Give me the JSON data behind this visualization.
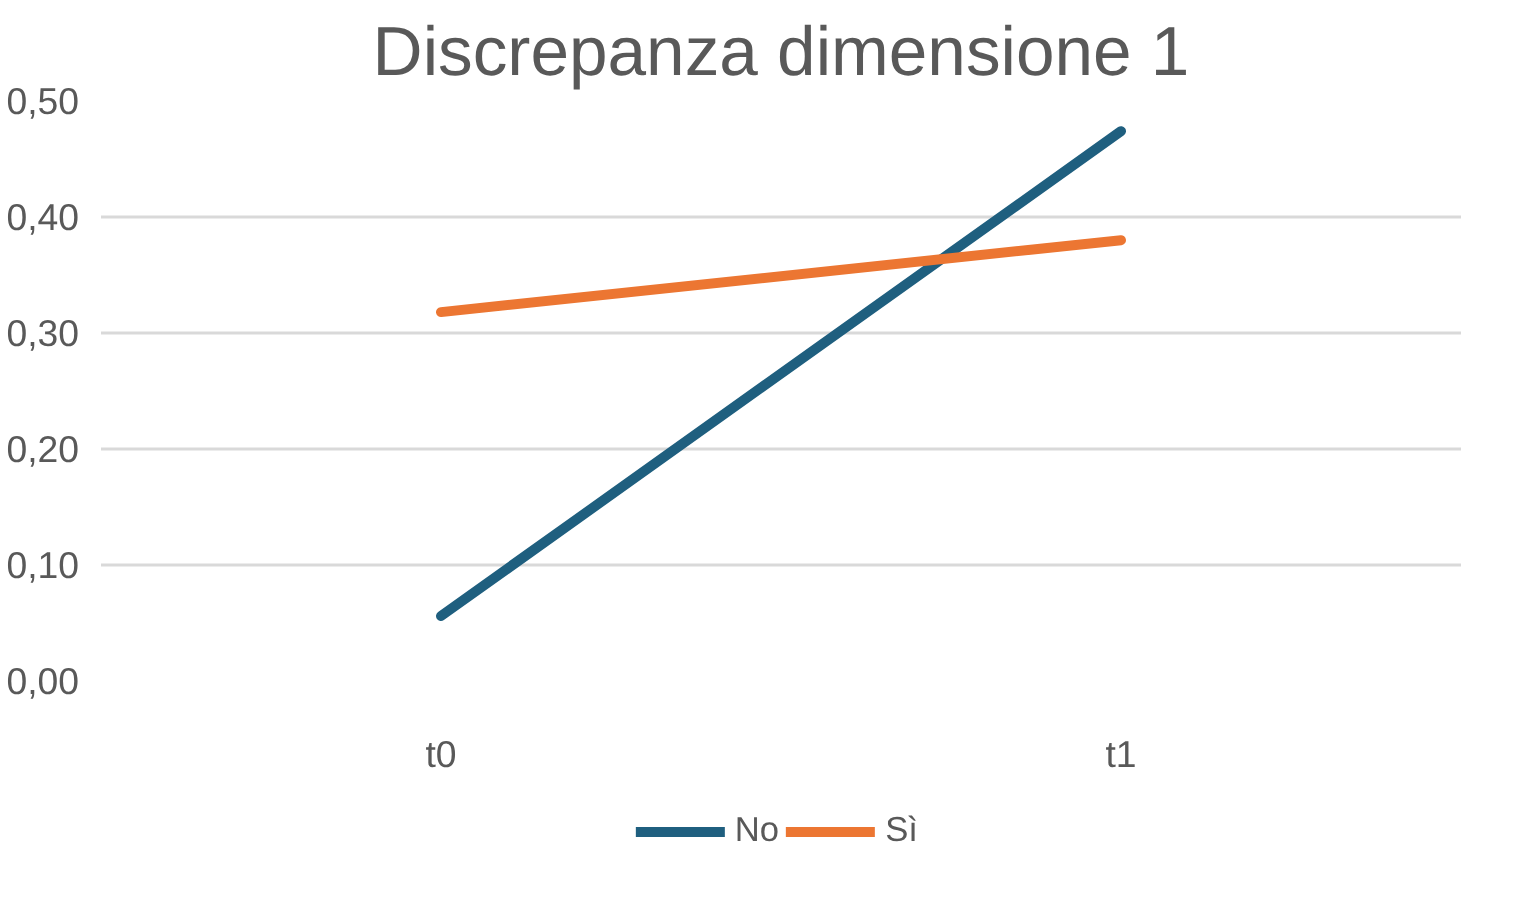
{
  "chart_data": {
    "type": "line",
    "title": "Discrepanza dimensione 1",
    "categories": [
      "t0",
      "t1"
    ],
    "series": [
      {
        "name": "No",
        "color": "#1f5f7f",
        "values": [
          0.056,
          0.474
        ]
      },
      {
        "name": "Sì",
        "color": "#ec7632",
        "values": [
          0.318,
          0.38
        ]
      }
    ],
    "ylim": [
      0,
      0.5
    ],
    "yticks": [
      {
        "value": 0,
        "label": "0,00"
      },
      {
        "value": 0.1,
        "label": "0,10"
      },
      {
        "value": 0.2,
        "label": "0,20"
      },
      {
        "value": 0.3,
        "label": "0,30"
      },
      {
        "value": 0.4,
        "label": "0,40"
      },
      {
        "value": 0.5,
        "label": "0,50"
      }
    ],
    "grid": "y",
    "legend": "bottom",
    "marker": "none",
    "line_style": "solid"
  }
}
